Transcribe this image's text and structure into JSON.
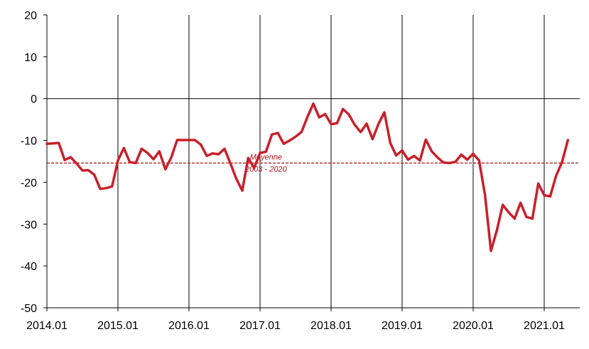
{
  "chart_data": {
    "type": "line",
    "title": "",
    "xlabel": "",
    "ylabel": "",
    "ylim": [
      -50,
      20
    ],
    "yticks": [
      20,
      10,
      0,
      -10,
      -20,
      -30,
      -40,
      -50
    ],
    "yticks_labels": [
      "20",
      "10",
      "0",
      "-10",
      "-20",
      "-30",
      "-40",
      "-50"
    ],
    "xticks_labels": [
      "2014.01",
      "2015.01",
      "2016.01",
      "2017.01",
      "2018.01",
      "2019.01",
      "2020.01",
      "2021.01"
    ],
    "x_start": "2014.01",
    "grid": "vertical lines at each January",
    "series": [
      {
        "name": "",
        "color": "#c8202a",
        "values": [
          -10.8,
          -10.7,
          -10.6,
          -14.7,
          -14.0,
          -15.5,
          -17.2,
          -17.1,
          -18.2,
          -21.6,
          -21.4,
          -21.0,
          -14.8,
          -11.8,
          -15.2,
          -15.4,
          -12.0,
          -13.0,
          -14.5,
          -12.6,
          -16.9,
          -14.1,
          -9.9,
          -9.9,
          -9.9,
          -9.9,
          -11.0,
          -13.7,
          -13.1,
          -13.3,
          -12.0,
          -15.5,
          -19.2,
          -22.0,
          -14.2,
          -16.6,
          -13.0,
          -12.7,
          -8.6,
          -8.2,
          -10.8,
          -10.0,
          -9.1,
          -8.0,
          -4.4,
          -1.2,
          -4.5,
          -3.7,
          -6.1,
          -5.9,
          -2.5,
          -3.8,
          -6.3,
          -8.0,
          -6.0,
          -9.7,
          -6.1,
          -3.3,
          -10.6,
          -13.6,
          -12.4,
          -14.6,
          -13.7,
          -14.8,
          -9.8,
          -12.6,
          -14.1,
          -15.3,
          -15.4,
          -15.1,
          -13.4,
          -14.6,
          -13.2,
          -14.8,
          -23.0,
          -36.4,
          -31.5,
          -25.4,
          -27.2,
          -28.7,
          -24.9,
          -28.3,
          -28.7,
          -20.3,
          -23.1,
          -23.4,
          -18.5,
          -15.2,
          -9.9
        ]
      }
    ],
    "average": {
      "value": -15.4,
      "color": "#b0161d",
      "style": "dashed",
      "label_line1": "Moyenne",
      "label_line2": "2003 - 2020"
    },
    "legend": "none"
  }
}
